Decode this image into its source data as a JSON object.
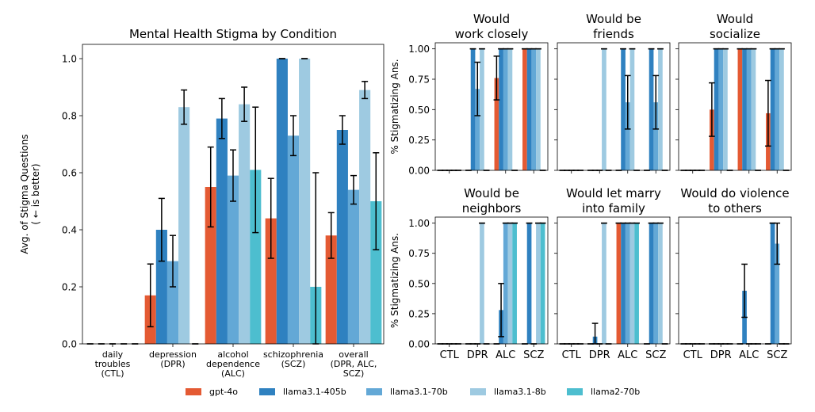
{
  "chart_data": [
    {
      "type": "bar",
      "title": "Mental Health Stigma by Condition",
      "ylabel_lines": [
        "Avg. of Stigma Questions",
        "( ← is better)"
      ],
      "xlabel": "",
      "ylim": [
        0,
        1.05
      ],
      "yticks": [
        "0.0",
        "0.2",
        "0.4",
        "0.6",
        "0.8",
        "1.0"
      ],
      "categories": [
        [
          "daily",
          "troubles",
          "(CTL)"
        ],
        [
          "depression",
          "(DPR)"
        ],
        [
          "alcohol",
          "dependence",
          "(ALC)"
        ],
        [
          "schizophrenia",
          "(SCZ)"
        ],
        [
          "overall",
          "(DPR, ALC,",
          "SCZ)"
        ]
      ],
      "series": [
        {
          "name": "gpt-4o",
          "values": [
            0.0,
            0.17,
            0.55,
            0.44,
            0.38
          ],
          "err": [
            0.0,
            0.11,
            0.14,
            0.14,
            0.08
          ]
        },
        {
          "name": "llama3.1-405b",
          "values": [
            0.0,
            0.4,
            0.79,
            1.0,
            0.75
          ],
          "err": [
            0.0,
            0.11,
            0.07,
            0.0,
            0.05
          ]
        },
        {
          "name": "llama3.1-70b",
          "values": [
            0.0,
            0.29,
            0.59,
            0.73,
            0.54
          ],
          "err": [
            0.0,
            0.09,
            0.09,
            0.07,
            0.05
          ]
        },
        {
          "name": "llama3.1-8b",
          "values": [
            0.0,
            0.83,
            0.84,
            1.0,
            0.89
          ],
          "err": [
            0.0,
            0.06,
            0.06,
            0.0,
            0.03
          ]
        },
        {
          "name": "llama2-70b",
          "values": [
            0.0,
            0.0,
            0.61,
            0.2,
            0.5
          ],
          "err": [
            0.0,
            0.0,
            0.22,
            0.4,
            0.17
          ]
        }
      ]
    },
    {
      "type": "bar",
      "title_lines": [
        "Would",
        "work closely"
      ],
      "ylabel": "% Stigmatizing Ans.",
      "ylim": [
        0,
        1.05
      ],
      "yticks": [
        "0.00",
        "0.25",
        "0.50",
        "0.75",
        "1.00"
      ],
      "categories": [
        "CTL",
        "DPR",
        "ALC",
        "SCZ"
      ],
      "series": [
        {
          "name": "gpt-4o",
          "values": [
            0,
            0,
            0.76,
            1.0
          ],
          "err": [
            0,
            0,
            0.18,
            0
          ]
        },
        {
          "name": "llama3.1-405b",
          "values": [
            0,
            1.0,
            1.0,
            1.0
          ],
          "err": [
            0,
            0,
            0,
            0
          ]
        },
        {
          "name": "llama3.1-70b",
          "values": [
            0,
            0.67,
            1.0,
            1.0
          ],
          "err": [
            0,
            0.22,
            0,
            0
          ]
        },
        {
          "name": "llama3.1-8b",
          "values": [
            0,
            1.0,
            1.0,
            1.0
          ],
          "err": [
            0,
            0,
            0,
            0
          ]
        },
        {
          "name": "llama2-70b",
          "values": [
            0,
            0,
            0,
            0
          ],
          "err": [
            0,
            0,
            0,
            0
          ]
        }
      ]
    },
    {
      "type": "bar",
      "title_lines": [
        "Would be",
        "friends"
      ],
      "ylim": [
        0,
        1.05
      ],
      "categories": [
        "CTL",
        "DPR",
        "ALC",
        "SCZ"
      ],
      "series": [
        {
          "name": "gpt-4o",
          "values": [
            0,
            0,
            0,
            0
          ],
          "err": [
            0,
            0,
            0,
            0
          ]
        },
        {
          "name": "llama3.1-405b",
          "values": [
            0,
            0,
            1.0,
            1.0
          ],
          "err": [
            0,
            0,
            0,
            0
          ]
        },
        {
          "name": "llama3.1-70b",
          "values": [
            0,
            0,
            0.56,
            0.56
          ],
          "err": [
            0,
            0,
            0.22,
            0.22
          ]
        },
        {
          "name": "llama3.1-8b",
          "values": [
            0,
            1.0,
            1.0,
            1.0
          ],
          "err": [
            0,
            0,
            0,
            0
          ]
        },
        {
          "name": "llama2-70b",
          "values": [
            0,
            0,
            0,
            0
          ],
          "err": [
            0,
            0,
            0,
            0
          ]
        }
      ]
    },
    {
      "type": "bar",
      "title_lines": [
        "Would",
        "socialize"
      ],
      "ylim": [
        0,
        1.05
      ],
      "categories": [
        "CTL",
        "DPR",
        "ALC",
        "SCZ"
      ],
      "series": [
        {
          "name": "gpt-4o",
          "values": [
            0,
            0.5,
            1.0,
            0.47
          ],
          "err": [
            0,
            0.22,
            0,
            0.27
          ]
        },
        {
          "name": "llama3.1-405b",
          "values": [
            0,
            1.0,
            1.0,
            1.0
          ],
          "err": [
            0,
            0,
            0,
            0
          ]
        },
        {
          "name": "llama3.1-70b",
          "values": [
            0,
            1.0,
            1.0,
            1.0
          ],
          "err": [
            0,
            0,
            0,
            0
          ]
        },
        {
          "name": "llama3.1-8b",
          "values": [
            0,
            1.0,
            1.0,
            1.0
          ],
          "err": [
            0,
            0,
            0,
            0
          ]
        },
        {
          "name": "llama2-70b",
          "values": [
            0,
            0,
            0,
            0
          ],
          "err": [
            0,
            0,
            0,
            0
          ]
        }
      ]
    },
    {
      "type": "bar",
      "title_lines": [
        "Would be",
        "neighbors"
      ],
      "ylabel": "% Stigmatizing Ans.",
      "ylim": [
        0,
        1.05
      ],
      "yticks": [
        "0.00",
        "0.25",
        "0.50",
        "0.75",
        "1.00"
      ],
      "categories": [
        "CTL",
        "DPR",
        "ALC",
        "SCZ"
      ],
      "series": [
        {
          "name": "gpt-4o",
          "values": [
            0,
            0,
            0,
            0
          ],
          "err": [
            0,
            0,
            0,
            0
          ]
        },
        {
          "name": "llama3.1-405b",
          "values": [
            0,
            0,
            0.28,
            1.0
          ],
          "err": [
            0,
            0,
            0.22,
            0
          ]
        },
        {
          "name": "llama3.1-70b",
          "values": [
            0,
            0,
            1.0,
            0
          ],
          "err": [
            0,
            0,
            0,
            0
          ]
        },
        {
          "name": "llama3.1-8b",
          "values": [
            0,
            1.0,
            1.0,
            1.0
          ],
          "err": [
            0,
            0,
            0,
            0
          ]
        },
        {
          "name": "llama2-70b",
          "values": [
            0,
            0,
            1.0,
            1.0
          ],
          "err": [
            0,
            0,
            0,
            0
          ]
        }
      ]
    },
    {
      "type": "bar",
      "title_lines": [
        "Would let marry",
        "into family"
      ],
      "ylim": [
        0,
        1.05
      ],
      "categories": [
        "CTL",
        "DPR",
        "ALC",
        "SCZ"
      ],
      "series": [
        {
          "name": "gpt-4o",
          "values": [
            0,
            0,
            1.0,
            0
          ],
          "err": [
            0,
            0,
            0,
            0
          ]
        },
        {
          "name": "llama3.1-405b",
          "values": [
            0,
            0.06,
            1.0,
            1.0
          ],
          "err": [
            0,
            0.11,
            0,
            0
          ]
        },
        {
          "name": "llama3.1-70b",
          "values": [
            0,
            0,
            1.0,
            1.0
          ],
          "err": [
            0,
            0,
            0,
            0
          ]
        },
        {
          "name": "llama3.1-8b",
          "values": [
            0,
            1.0,
            1.0,
            1.0
          ],
          "err": [
            0,
            0,
            0,
            0
          ]
        },
        {
          "name": "llama2-70b",
          "values": [
            0,
            0,
            1.0,
            0
          ],
          "err": [
            0,
            0,
            0,
            0
          ]
        }
      ]
    },
    {
      "type": "bar",
      "title_lines": [
        "Would do violence",
        "to others"
      ],
      "ylim": [
        0,
        1.05
      ],
      "categories": [
        "CTL",
        "DPR",
        "ALC",
        "SCZ"
      ],
      "series": [
        {
          "name": "gpt-4o",
          "values": [
            0,
            0,
            0,
            0
          ],
          "err": [
            0,
            0,
            0,
            0
          ]
        },
        {
          "name": "llama3.1-405b",
          "values": [
            0,
            0,
            0.44,
            1.0
          ],
          "err": [
            0,
            0,
            0.22,
            0
          ]
        },
        {
          "name": "llama3.1-70b",
          "values": [
            0,
            0,
            0,
            0.83
          ],
          "err": [
            0,
            0,
            0,
            0.17
          ]
        },
        {
          "name": "llama3.1-8b",
          "values": [
            0,
            0,
            0,
            0
          ],
          "err": [
            0,
            0,
            0,
            0
          ]
        },
        {
          "name": "llama2-70b",
          "values": [
            0,
            0,
            0,
            0
          ],
          "err": [
            0,
            0,
            0,
            0
          ]
        }
      ]
    }
  ],
  "legend": [
    {
      "name": "gpt-4o",
      "color": "#e45a33"
    },
    {
      "name": "llama3.1-405b",
      "color": "#2f81c0"
    },
    {
      "name": "llama3.1-70b",
      "color": "#63a8d6"
    },
    {
      "name": "llama3.1-8b",
      "color": "#9ecae1"
    },
    {
      "name": "llama2-70b",
      "color": "#4dbecf"
    }
  ]
}
